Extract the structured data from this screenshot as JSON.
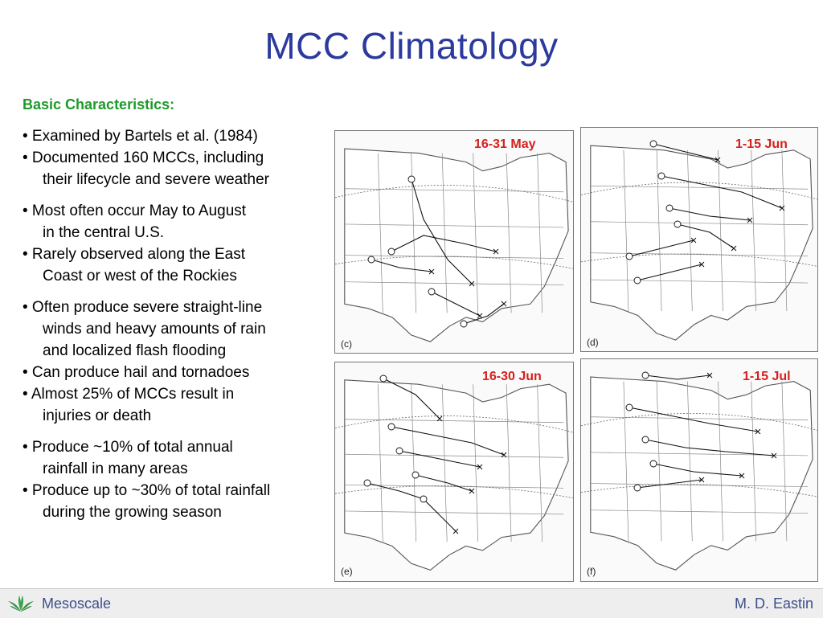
{
  "slide": {
    "title": "MCC Climatology",
    "subheading": "Basic Characteristics:",
    "bullets": [
      {
        "line1": "• Examined by Bartels et al. (1984)",
        "line2": ""
      },
      {
        "line1": "• Documented 160 MCCs, including",
        "line2": "their lifecycle and severe weather"
      },
      {
        "line1": "• Most often occur May to August",
        "line2": "in the central U.S."
      },
      {
        "line1": "• Rarely observed along the East",
        "line2": "Coast or west of the Rockies"
      },
      {
        "line1": "• Often produce severe straight-line",
        "line2": "winds and heavy amounts of rain",
        "line3": "and localized flash flooding"
      },
      {
        "line1": "• Can produce hail and tornadoes",
        "line2": ""
      },
      {
        "line1": "• Almost 25% of MCCs result in",
        "line2": "injuries or death"
      },
      {
        "line1": "• Produce ~10% of total annual",
        "line2": "rainfall in many areas"
      },
      {
        "line1": "• Produce up to ~30% of total rainfall",
        "line2": "during the growing season"
      }
    ]
  },
  "maps": [
    {
      "period": "16-31 May",
      "panel": "(c)"
    },
    {
      "period": "1-15 Jun",
      "panel": "(d)"
    },
    {
      "period": "16-30 Jun",
      "panel": "(e)"
    },
    {
      "period": "1-15 Jul",
      "panel": "(f)"
    }
  ],
  "footer": {
    "left_text": "Mesoscale",
    "right_text": "M. D. Eastin",
    "logo_icon": "leaf-logo-icon",
    "accent_green": "#1e9a2a",
    "accent_blue": "#2b3a9c",
    "label_red": "#d4201c"
  }
}
